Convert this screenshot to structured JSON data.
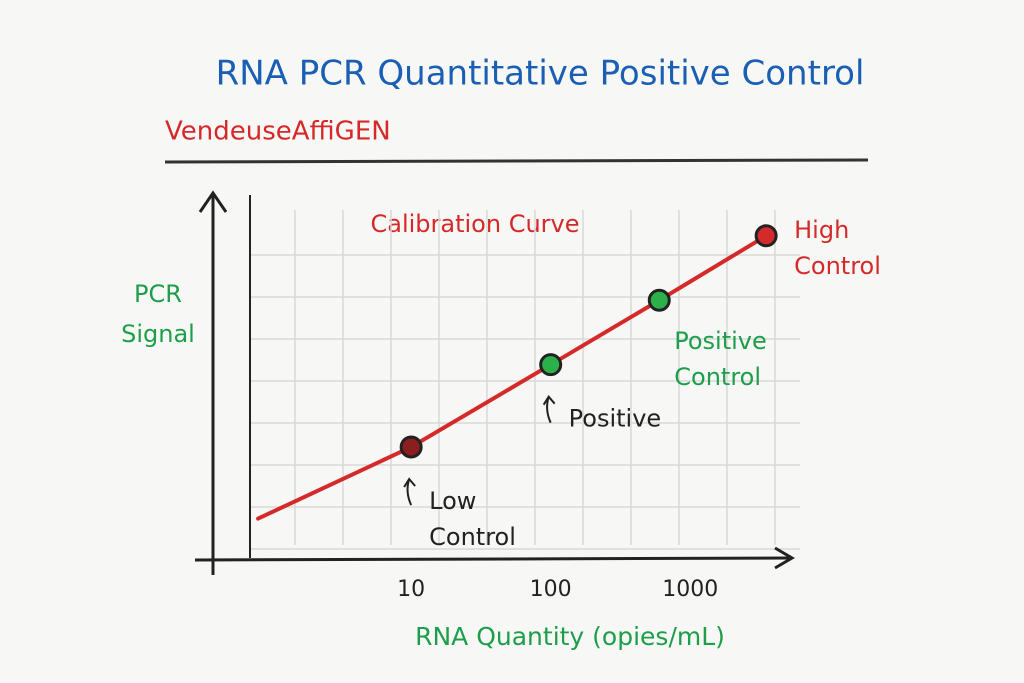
{
  "chart_data": {
    "type": "line",
    "title": "RNA PCR Quantitative Positive Control",
    "subtitle": "VendeuseAffiGEN",
    "annotation": "Calibration Curve",
    "ylabel": "PCR Signal",
    "xlabel": "RNA Quantity (opies/mL)",
    "xscale": "log",
    "xlim": [
      0.7,
      4400
    ],
    "xticks": [
      10,
      100,
      1000
    ],
    "ylim": [
      0,
      100
    ],
    "grid": true,
    "series": [
      {
        "color": "#d42a2a",
        "x": [
          0.8,
          10,
          100,
          600,
          3500
        ],
        "values": [
          11,
          31,
          54,
          72,
          90
        ],
        "point_colors": [
          null,
          "#8b1e1e",
          "#2bb04a",
          "#2bb04a",
          "#d42a2a"
        ],
        "point_labels": [
          null,
          "Low Control",
          "Positive",
          "Positive Control",
          "High Control"
        ],
        "label_colors": [
          null,
          "#222222",
          "#222222",
          "#1e9e4a",
          "#d42a2a"
        ]
      }
    ]
  }
}
